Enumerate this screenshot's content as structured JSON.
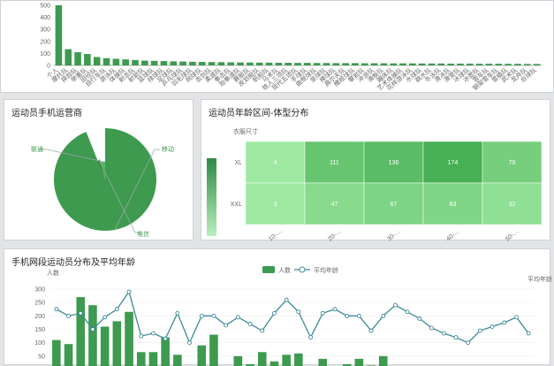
{
  "panels": {
    "top": {
      "title": ""
    },
    "carrier": {
      "title": "运动员手机运营商"
    },
    "heat": {
      "title": "运动员年龄区间-体型分布"
    },
    "bottom": {
      "title": "手机网段运动员分布及平均年龄"
    }
  },
  "chart_data": [
    {
      "type": "bar",
      "title": "",
      "categories": [
        "个人",
        "摩托队",
        "摔跤队",
        "举重队",
        "田径队",
        "自行车队",
        "游泳队",
        "体操队",
        "射击队",
        "射箭队",
        "篮球队",
        "排球队",
        "足球队",
        "乒乓球队",
        "羽毛球队",
        "网球队",
        "击剑队",
        "柔道队",
        "拳击队",
        "跆拳道队",
        "赛艇队",
        "皮划艇队",
        "帆船队",
        "马术队",
        "铁人三项队",
        "现代五项队",
        "手球队",
        "曲棍球队",
        "垒球队",
        "棒球队",
        "高尔夫队",
        "橄榄球队",
        "攀岩队",
        "冲浪队",
        "滑板队",
        "蹦床队",
        "艺术体操队",
        "花样游泳队",
        "水球队",
        "跳水队",
        "冬泳队",
        "滑冰队",
        "滑雪队",
        "冰球队",
        "冰壶队",
        "雪车队",
        "钢架雪车队",
        "雪橇队",
        "武术队",
        "龙舟队",
        "台球队"
      ],
      "values": [
        520,
        135,
        110,
        95,
        70,
        60,
        55,
        50,
        45,
        40,
        38,
        36,
        34,
        32,
        30,
        29,
        28,
        27,
        26,
        25,
        24,
        23,
        23,
        22,
        22,
        21,
        21,
        20,
        20,
        19,
        19,
        19,
        18,
        18,
        18,
        17,
        17,
        17,
        16,
        16,
        16,
        15,
        15,
        15,
        14,
        14,
        14,
        13,
        13,
        12,
        12
      ],
      "ylim": [
        0,
        500
      ],
      "yticks": [
        0,
        100,
        200,
        300,
        400,
        500
      ],
      "color": "#3d9a4f"
    },
    {
      "type": "pie",
      "title": "运动员手机运营商",
      "slices": [
        {
          "name": "移动",
          "value": 140,
          "radius": 1.0
        },
        {
          "name": "电信",
          "value": 3,
          "radius": 0.4
        },
        {
          "name": "联通",
          "value": 6,
          "radius": 0.35
        }
      ],
      "colors": [
        "#3d9a4f",
        "#2f7d3f",
        "#5bb36a"
      ]
    },
    {
      "type": "heatmap",
      "title": "运动员年龄区间-体型分布",
      "ylabel": "衣服尺寸",
      "x": [
        "10-…",
        "20-…",
        "30-…",
        "40-…",
        "50-…"
      ],
      "y": [
        "XL",
        "XXL"
      ],
      "values": [
        [
          4,
          111,
          136,
          174,
          79
        ],
        [
          3,
          47,
          67,
          63,
          32
        ]
      ],
      "range": [
        0,
        174
      ]
    },
    {
      "type": "bar",
      "title": "手机网段运动员分布及平均年龄",
      "ylabel": "人数",
      "y2label": "平均年龄",
      "legend": [
        "人数",
        "平均年龄"
      ],
      "ylim": [
        0,
        300
      ],
      "yticks": [
        0,
        50,
        100,
        150,
        200,
        250,
        300
      ],
      "series": [
        {
          "name": "人数",
          "type": "bar",
          "values": [
            110,
            95,
            270,
            240,
            160,
            180,
            215,
            65,
            65,
            120,
            55,
            5,
            90,
            130,
            10,
            50,
            20,
            65,
            30,
            55,
            60,
            5,
            40,
            10,
            20,
            40,
            15,
            50,
            5,
            5,
            5,
            5,
            5,
            5,
            5,
            5,
            5,
            5,
            5,
            5
          ]
        },
        {
          "name": "平均年龄",
          "type": "line",
          "values": [
            225,
            200,
            210,
            150,
            195,
            225,
            290,
            125,
            135,
            115,
            210,
            100,
            200,
            200,
            165,
            195,
            170,
            145,
            210,
            260,
            215,
            120,
            210,
            225,
            200,
            200,
            145,
            200,
            240,
            215,
            190,
            155,
            135,
            120,
            100,
            145,
            160,
            175,
            195,
            135
          ]
        }
      ],
      "colors": {
        "bar": "#3d9a4f",
        "line": "#3d8a95"
      }
    }
  ]
}
